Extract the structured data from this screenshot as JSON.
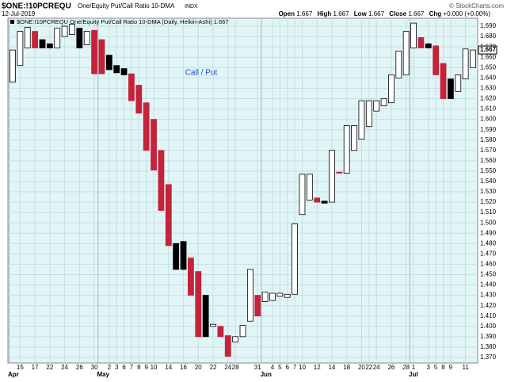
{
  "chart_data": {
    "type": "candlestick",
    "symbol": "$ONE:!10PCREQU",
    "title": "One/Equity Put/Call Ratio 10-DMA",
    "exchange": "INDX",
    "date": "12-Jul-2019",
    "credit": "© StockCharts.com",
    "quote": {
      "open_label": "Open",
      "open": "1.667",
      "high_label": "High",
      "high": "1.667",
      "low_label": "Low",
      "low": "1.667",
      "close_label": "Close",
      "close": "1.667",
      "chg_label": "Chg",
      "chg": "+0.000 (+0.00%)"
    },
    "legend": "$ONE:!10PCREQU One/Equity Put/Call Ratio 10-DMA (Daily, Heikin-Ashi) 1.667",
    "annotation": "Call / Put",
    "last_value": {
      "value": 1.667,
      "label": "1.667"
    },
    "categories": [
      null,
      "15",
      null,
      "17",
      null,
      "22",
      null,
      "24",
      null,
      "26",
      null,
      "30",
      null,
      "2",
      "3",
      "6",
      "7",
      "8",
      "9",
      "10",
      null,
      "14",
      null,
      "16",
      null,
      "20",
      null,
      "22",
      null,
      "24",
      "28",
      null,
      null,
      "31",
      null,
      "4",
      "5",
      "6",
      "7",
      "10",
      null,
      "12",
      null,
      "14",
      null,
      "18",
      null,
      "20",
      "22",
      "24",
      null,
      "26",
      null,
      "28",
      "1",
      null,
      "3",
      "5",
      "8",
      "9",
      null,
      "11",
      null
    ],
    "month_labels": [
      "Apr",
      null,
      null,
      null,
      null,
      null,
      null,
      null,
      null,
      null,
      null,
      null,
      "May",
      null,
      null,
      null,
      null,
      null,
      null,
      null,
      null,
      null,
      null,
      null,
      null,
      null,
      null,
      null,
      null,
      null,
      null,
      null,
      null,
      null,
      "Jun",
      null,
      null,
      null,
      null,
      null,
      null,
      null,
      null,
      null,
      null,
      null,
      null,
      null,
      null,
      null,
      null,
      null,
      null,
      null,
      "Jul",
      null,
      null,
      null,
      null,
      null,
      null,
      null,
      null
    ],
    "open": [
      1.636,
      1.652,
      1.669,
      1.685,
      1.677,
      1.673,
      1.669,
      1.68,
      1.682,
      1.688,
      1.672,
      1.686,
      1.677,
      1.662,
      1.652,
      1.649,
      1.644,
      1.633,
      1.616,
      1.6,
      1.57,
      1.537,
      1.48,
      1.482,
      1.466,
      1.453,
      1.43,
      1.4,
      1.4,
      1.391,
      1.385,
      1.39,
      1.405,
      1.43,
      1.424,
      1.425,
      1.429,
      1.428,
      1.431,
      1.508,
      1.522,
      1.524,
      1.521,
      1.52,
      1.549,
      1.548,
      1.57,
      1.581,
      1.593,
      1.608,
      1.613,
      1.616,
      1.64,
      1.643,
      1.669,
      1.679,
      1.673,
      1.671,
      1.654,
      1.639,
      1.627,
      1.639,
      1.65
    ],
    "close": [
      1.667,
      1.685,
      1.689,
      1.669,
      1.669,
      1.669,
      1.688,
      1.69,
      1.692,
      1.669,
      1.685,
      1.644,
      1.644,
      1.648,
      1.645,
      1.643,
      1.618,
      1.606,
      1.57,
      1.551,
      1.512,
      1.478,
      1.455,
      1.455,
      1.43,
      1.39,
      1.39,
      1.402,
      1.39,
      1.371,
      1.39,
      1.401,
      1.455,
      1.41,
      1.433,
      1.432,
      1.432,
      1.431,
      1.499,
      1.547,
      1.547,
      1.52,
      1.519,
      1.57,
      1.548,
      1.594,
      1.594,
      1.618,
      1.618,
      1.618,
      1.62,
      1.643,
      1.666,
      1.685,
      1.693,
      1.669,
      1.669,
      1.643,
      1.62,
      1.62,
      1.643,
      1.668,
      1.667
    ],
    "fills": [
      "#ffffff",
      "#ffffff",
      "#ffffff",
      "#c4233a",
      "#000000",
      "#000000",
      "#ffffff",
      "#ffffff",
      "#ffffff",
      "#000000",
      "#ffffff",
      "#c4233a",
      "#c4233a",
      "#000000",
      "#000000",
      "#000000",
      "#c4233a",
      "#c4233a",
      "#c4233a",
      "#c4233a",
      "#c4233a",
      "#c4233a",
      "#000000",
      "#000000",
      "#c4233a",
      "#c4233a",
      "#000000",
      "#ffffff",
      "#c4233a",
      "#c4233a",
      "#ffffff",
      "#ffffff",
      "#ffffff",
      "#c4233a",
      "#ffffff",
      "#ffffff",
      "#ffffff",
      "#ffffff",
      "#ffffff",
      "#ffffff",
      "#ffffff",
      "#c4233a",
      "#000000",
      "#ffffff",
      "#c4233a",
      "#ffffff",
      "#ffffff",
      "#ffffff",
      "#ffffff",
      "#ffffff",
      "#ffffff",
      "#ffffff",
      "#ffffff",
      "#ffffff",
      "#ffffff",
      "#c4233a",
      "#000000",
      "#c4233a",
      "#c4233a",
      "#000000",
      "#ffffff",
      "#ffffff",
      "#ffffff"
    ],
    "ylim": [
      1.3646,
      1.6977
    ],
    "yticks": [
      {
        "value": 1.37,
        "label": "1.370"
      },
      {
        "value": 1.38,
        "label": "1.380"
      },
      {
        "value": 1.39,
        "label": "1.390"
      },
      {
        "value": 1.4,
        "label": "1.400"
      },
      {
        "value": 1.41,
        "label": "1.410"
      },
      {
        "value": 1.42,
        "label": "1.420"
      },
      {
        "value": 1.43,
        "label": "1.430"
      },
      {
        "value": 1.44,
        "label": "1.440"
      },
      {
        "value": 1.45,
        "label": "1.450"
      },
      {
        "value": 1.46,
        "label": "1.460"
      },
      {
        "value": 1.47,
        "label": "1.470"
      },
      {
        "value": 1.48,
        "label": "1.480"
      },
      {
        "value": 1.49,
        "label": "1.490"
      },
      {
        "value": 1.5,
        "label": "1.500"
      },
      {
        "value": 1.51,
        "label": "1.510"
      },
      {
        "value": 1.52,
        "label": "1.520"
      },
      {
        "value": 1.53,
        "label": "1.530"
      },
      {
        "value": 1.54,
        "label": "1.540"
      },
      {
        "value": 1.55,
        "label": "1.550"
      },
      {
        "value": 1.56,
        "label": "1.560"
      },
      {
        "value": 1.57,
        "label": "1.570"
      },
      {
        "value": 1.58,
        "label": "1.580"
      },
      {
        "value": 1.59,
        "label": "1.590"
      },
      {
        "value": 1.6,
        "label": "1.600"
      },
      {
        "value": 1.61,
        "label": "1.610"
      },
      {
        "value": 1.62,
        "label": "1.620"
      },
      {
        "value": 1.63,
        "label": "1.630"
      },
      {
        "value": 1.64,
        "label": "1.640"
      },
      {
        "value": 1.65,
        "label": "1.650"
      },
      {
        "value": 1.66,
        "label": "1.660"
      },
      {
        "value": 1.67,
        "label": "1.670"
      },
      {
        "value": 1.68,
        "label": "1.680"
      },
      {
        "value": 1.69,
        "label": "1.690"
      }
    ],
    "grid": true
  }
}
